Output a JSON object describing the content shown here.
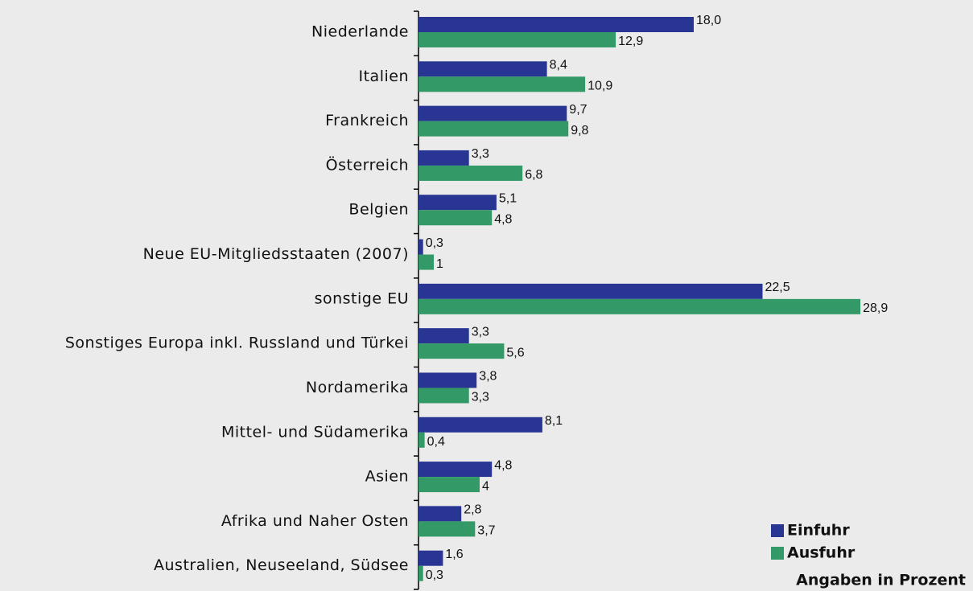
{
  "chart_data": {
    "type": "hbar",
    "categories": [
      "Niederlande",
      "Italien",
      "Frankreich",
      "Österreich",
      "Belgien",
      "Neue EU-Mitgliedsstaaten (2007)",
      "sonstige EU",
      "Sonstiges Europa inkl. Russland und Türkei",
      "Nordamerika",
      "Mittel- und Südamerika",
      "Asien",
      "Afrika und Naher Osten",
      "Australien, Neuseeland, Südsee"
    ],
    "series": [
      {
        "name": "Einfuhr",
        "color": "#283593",
        "values": [
          18.0,
          8.4,
          9.7,
          3.3,
          5.1,
          0.3,
          22.5,
          3.3,
          3.8,
          8.1,
          4.8,
          2.8,
          1.6
        ],
        "value_labels": [
          "18,0",
          "8,4",
          "9,7",
          "3,3",
          "5,1",
          "0,3",
          "22,5",
          "3,3",
          "3,8",
          "8,1",
          "4,8",
          "2,8",
          "1,6"
        ]
      },
      {
        "name": "Ausfuhr",
        "color": "#339966",
        "values": [
          12.9,
          10.9,
          9.8,
          6.8,
          4.8,
          1,
          28.9,
          5.6,
          3.3,
          0.4,
          4,
          3.7,
          0.3
        ],
        "value_labels": [
          "12,9",
          "10,9",
          "9,8",
          "6,8",
          "4,8",
          "1",
          "28,9",
          "5,6",
          "3,3",
          "0,4",
          "4",
          "3,7",
          "0,3"
        ]
      }
    ],
    "xlim": [
      0,
      30
    ],
    "note": "Angaben in Prozent",
    "legend": "bottom-right"
  }
}
